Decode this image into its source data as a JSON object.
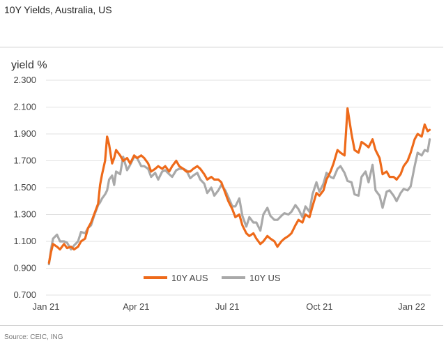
{
  "header": {
    "title": "10Y Yields, Australia, US"
  },
  "footer": {
    "source": "Source: CEIC, ING"
  },
  "colors": {
    "aus": "#ee6a1a",
    "us": "#a9a9a9",
    "grid": "#e1e1e1"
  },
  "chart_data": {
    "type": "line",
    "title": "10Y Yields, Australia, US",
    "ylabel": "yield %",
    "xlabel": "",
    "ylim": [
      0.7,
      2.3
    ],
    "yticks": [
      "2.300",
      "2.100",
      "1.900",
      "1.700",
      "1.500",
      "1.300",
      "1.100",
      "0.900",
      "0.700"
    ],
    "xlim": [
      "2021-01-01",
      "2022-01-20"
    ],
    "xticks": [
      {
        "date": "2021-01-01",
        "label": "Jan 21"
      },
      {
        "date": "2021-04-01",
        "label": "Apr 21"
      },
      {
        "date": "2021-07-01",
        "label": "Jul 21"
      },
      {
        "date": "2021-10-01",
        "label": "Oct 21"
      },
      {
        "date": "2022-01-01",
        "label": "Jan 22"
      }
    ],
    "grid": true,
    "legend": "bottom-center",
    "series": [
      {
        "name": "10Y AUS",
        "points": [
          [
            "2021-01-04",
            0.94
          ],
          [
            "2021-01-06",
            1.02
          ],
          [
            "2021-01-08",
            1.08
          ],
          [
            "2021-01-12",
            1.06
          ],
          [
            "2021-01-15",
            1.04
          ],
          [
            "2021-01-19",
            1.08
          ],
          [
            "2021-01-22",
            1.05
          ],
          [
            "2021-01-26",
            1.06
          ],
          [
            "2021-01-29",
            1.04
          ],
          [
            "2021-02-02",
            1.06
          ],
          [
            "2021-02-05",
            1.1
          ],
          [
            "2021-02-09",
            1.12
          ],
          [
            "2021-02-12",
            1.2
          ],
          [
            "2021-02-15",
            1.24
          ],
          [
            "2021-02-18",
            1.3
          ],
          [
            "2021-02-22",
            1.38
          ],
          [
            "2021-02-24",
            1.52
          ],
          [
            "2021-02-26",
            1.6
          ],
          [
            "2021-03-01",
            1.7
          ],
          [
            "2021-03-03",
            1.88
          ],
          [
            "2021-03-05",
            1.82
          ],
          [
            "2021-03-08",
            1.68
          ],
          [
            "2021-03-10",
            1.72
          ],
          [
            "2021-03-12",
            1.78
          ],
          [
            "2021-03-16",
            1.74
          ],
          [
            "2021-03-19",
            1.7
          ],
          [
            "2021-03-23",
            1.72
          ],
          [
            "2021-03-26",
            1.68
          ],
          [
            "2021-03-30",
            1.74
          ],
          [
            "2021-04-02",
            1.72
          ],
          [
            "2021-04-06",
            1.74
          ],
          [
            "2021-04-09",
            1.72
          ],
          [
            "2021-04-13",
            1.68
          ],
          [
            "2021-04-16",
            1.62
          ],
          [
            "2021-04-20",
            1.64
          ],
          [
            "2021-04-23",
            1.66
          ],
          [
            "2021-04-27",
            1.64
          ],
          [
            "2021-04-30",
            1.66
          ],
          [
            "2021-05-04",
            1.62
          ],
          [
            "2021-05-07",
            1.66
          ],
          [
            "2021-05-11",
            1.7
          ],
          [
            "2021-05-14",
            1.66
          ],
          [
            "2021-05-18",
            1.64
          ],
          [
            "2021-05-21",
            1.62
          ],
          [
            "2021-05-25",
            1.62
          ],
          [
            "2021-05-28",
            1.64
          ],
          [
            "2021-06-01",
            1.66
          ],
          [
            "2021-06-04",
            1.64
          ],
          [
            "2021-06-08",
            1.6
          ],
          [
            "2021-06-11",
            1.56
          ],
          [
            "2021-06-15",
            1.58
          ],
          [
            "2021-06-18",
            1.56
          ],
          [
            "2021-06-22",
            1.56
          ],
          [
            "2021-06-25",
            1.54
          ],
          [
            "2021-06-29",
            1.46
          ],
          [
            "2021-07-02",
            1.4
          ],
          [
            "2021-07-06",
            1.34
          ],
          [
            "2021-07-09",
            1.28
          ],
          [
            "2021-07-13",
            1.3
          ],
          [
            "2021-07-16",
            1.22
          ],
          [
            "2021-07-20",
            1.16
          ],
          [
            "2021-07-23",
            1.14
          ],
          [
            "2021-07-27",
            1.16
          ],
          [
            "2021-07-30",
            1.12
          ],
          [
            "2021-08-03",
            1.08
          ],
          [
            "2021-08-06",
            1.1
          ],
          [
            "2021-08-10",
            1.14
          ],
          [
            "2021-08-13",
            1.12
          ],
          [
            "2021-08-17",
            1.1
          ],
          [
            "2021-08-20",
            1.06
          ],
          [
            "2021-08-24",
            1.1
          ],
          [
            "2021-08-27",
            1.12
          ],
          [
            "2021-08-31",
            1.14
          ],
          [
            "2021-09-03",
            1.16
          ],
          [
            "2021-09-07",
            1.22
          ],
          [
            "2021-09-10",
            1.26
          ],
          [
            "2021-09-14",
            1.24
          ],
          [
            "2021-09-17",
            1.3
          ],
          [
            "2021-09-21",
            1.28
          ],
          [
            "2021-09-24",
            1.36
          ],
          [
            "2021-09-28",
            1.46
          ],
          [
            "2021-10-01",
            1.44
          ],
          [
            "2021-10-05",
            1.48
          ],
          [
            "2021-10-08",
            1.56
          ],
          [
            "2021-10-12",
            1.62
          ],
          [
            "2021-10-15",
            1.68
          ],
          [
            "2021-10-19",
            1.78
          ],
          [
            "2021-10-22",
            1.76
          ],
          [
            "2021-10-26",
            1.74
          ],
          [
            "2021-10-29",
            2.09
          ],
          [
            "2021-11-02",
            1.9
          ],
          [
            "2021-11-05",
            1.78
          ],
          [
            "2021-11-09",
            1.76
          ],
          [
            "2021-11-12",
            1.84
          ],
          [
            "2021-11-16",
            1.82
          ],
          [
            "2021-11-19",
            1.8
          ],
          [
            "2021-11-23",
            1.86
          ],
          [
            "2021-11-26",
            1.78
          ],
          [
            "2021-11-30",
            1.72
          ],
          [
            "2021-12-03",
            1.6
          ],
          [
            "2021-12-07",
            1.62
          ],
          [
            "2021-12-10",
            1.58
          ],
          [
            "2021-12-14",
            1.58
          ],
          [
            "2021-12-17",
            1.56
          ],
          [
            "2021-12-21",
            1.6
          ],
          [
            "2021-12-24",
            1.66
          ],
          [
            "2021-12-28",
            1.7
          ],
          [
            "2021-12-31",
            1.76
          ],
          [
            "2022-01-04",
            1.86
          ],
          [
            "2022-01-07",
            1.9
          ],
          [
            "2022-01-11",
            1.88
          ],
          [
            "2022-01-14",
            1.97
          ],
          [
            "2022-01-17",
            1.92
          ],
          [
            "2022-01-19",
            1.93
          ]
        ]
      },
      {
        "name": "10Y US",
        "points": [
          [
            "2021-01-04",
            0.93
          ],
          [
            "2021-01-06",
            1.04
          ],
          [
            "2021-01-08",
            1.12
          ],
          [
            "2021-01-12",
            1.15
          ],
          [
            "2021-01-15",
            1.1
          ],
          [
            "2021-01-19",
            1.1
          ],
          [
            "2021-01-22",
            1.09
          ],
          [
            "2021-01-26",
            1.04
          ],
          [
            "2021-01-29",
            1.07
          ],
          [
            "2021-02-02",
            1.1
          ],
          [
            "2021-02-05",
            1.17
          ],
          [
            "2021-02-09",
            1.16
          ],
          [
            "2021-02-12",
            1.2
          ],
          [
            "2021-02-15",
            1.22
          ],
          [
            "2021-02-18",
            1.29
          ],
          [
            "2021-02-22",
            1.37
          ],
          [
            "2021-02-24",
            1.39
          ],
          [
            "2021-02-26",
            1.42
          ],
          [
            "2021-03-01",
            1.45
          ],
          [
            "2021-03-03",
            1.48
          ],
          [
            "2021-03-05",
            1.56
          ],
          [
            "2021-03-08",
            1.59
          ],
          [
            "2021-03-10",
            1.52
          ],
          [
            "2021-03-12",
            1.62
          ],
          [
            "2021-03-16",
            1.6
          ],
          [
            "2021-03-19",
            1.73
          ],
          [
            "2021-03-23",
            1.63
          ],
          [
            "2021-03-26",
            1.67
          ],
          [
            "2021-03-30",
            1.73
          ],
          [
            "2021-04-02",
            1.72
          ],
          [
            "2021-04-06",
            1.66
          ],
          [
            "2021-04-09",
            1.66
          ],
          [
            "2021-04-13",
            1.64
          ],
          [
            "2021-04-16",
            1.58
          ],
          [
            "2021-04-20",
            1.61
          ],
          [
            "2021-04-23",
            1.56
          ],
          [
            "2021-04-27",
            1.62
          ],
          [
            "2021-04-30",
            1.63
          ],
          [
            "2021-05-04",
            1.6
          ],
          [
            "2021-05-07",
            1.58
          ],
          [
            "2021-05-11",
            1.63
          ],
          [
            "2021-05-14",
            1.64
          ],
          [
            "2021-05-18",
            1.64
          ],
          [
            "2021-05-21",
            1.63
          ],
          [
            "2021-05-25",
            1.57
          ],
          [
            "2021-05-28",
            1.59
          ],
          [
            "2021-06-01",
            1.61
          ],
          [
            "2021-06-04",
            1.56
          ],
          [
            "2021-06-08",
            1.53
          ],
          [
            "2021-06-11",
            1.46
          ],
          [
            "2021-06-15",
            1.5
          ],
          [
            "2021-06-18",
            1.44
          ],
          [
            "2021-06-22",
            1.48
          ],
          [
            "2021-06-25",
            1.52
          ],
          [
            "2021-06-29",
            1.48
          ],
          [
            "2021-07-02",
            1.43
          ],
          [
            "2021-07-06",
            1.36
          ],
          [
            "2021-07-09",
            1.36
          ],
          [
            "2021-07-13",
            1.42
          ],
          [
            "2021-07-16",
            1.29
          ],
          [
            "2021-07-20",
            1.21
          ],
          [
            "2021-07-23",
            1.28
          ],
          [
            "2021-07-27",
            1.24
          ],
          [
            "2021-07-30",
            1.24
          ],
          [
            "2021-08-03",
            1.18
          ],
          [
            "2021-08-06",
            1.3
          ],
          [
            "2021-08-10",
            1.35
          ],
          [
            "2021-08-13",
            1.29
          ],
          [
            "2021-08-17",
            1.26
          ],
          [
            "2021-08-20",
            1.26
          ],
          [
            "2021-08-24",
            1.29
          ],
          [
            "2021-08-27",
            1.31
          ],
          [
            "2021-08-31",
            1.3
          ],
          [
            "2021-09-03",
            1.32
          ],
          [
            "2021-09-07",
            1.37
          ],
          [
            "2021-09-10",
            1.34
          ],
          [
            "2021-09-14",
            1.28
          ],
          [
            "2021-09-17",
            1.36
          ],
          [
            "2021-09-21",
            1.32
          ],
          [
            "2021-09-24",
            1.45
          ],
          [
            "2021-09-28",
            1.54
          ],
          [
            "2021-10-01",
            1.47
          ],
          [
            "2021-10-05",
            1.53
          ],
          [
            "2021-10-08",
            1.61
          ],
          [
            "2021-10-12",
            1.58
          ],
          [
            "2021-10-15",
            1.57
          ],
          [
            "2021-10-19",
            1.64
          ],
          [
            "2021-10-22",
            1.66
          ],
          [
            "2021-10-26",
            1.61
          ],
          [
            "2021-10-29",
            1.55
          ],
          [
            "2021-11-02",
            1.54
          ],
          [
            "2021-11-05",
            1.45
          ],
          [
            "2021-11-09",
            1.44
          ],
          [
            "2021-11-12",
            1.58
          ],
          [
            "2021-11-16",
            1.62
          ],
          [
            "2021-11-19",
            1.54
          ],
          [
            "2021-11-23",
            1.67
          ],
          [
            "2021-11-26",
            1.48
          ],
          [
            "2021-11-30",
            1.44
          ],
          [
            "2021-12-03",
            1.35
          ],
          [
            "2021-12-07",
            1.47
          ],
          [
            "2021-12-10",
            1.48
          ],
          [
            "2021-12-14",
            1.44
          ],
          [
            "2021-12-17",
            1.4
          ],
          [
            "2021-12-21",
            1.46
          ],
          [
            "2021-12-24",
            1.49
          ],
          [
            "2021-12-28",
            1.48
          ],
          [
            "2021-12-31",
            1.51
          ],
          [
            "2022-01-04",
            1.66
          ],
          [
            "2022-01-07",
            1.76
          ],
          [
            "2022-01-11",
            1.74
          ],
          [
            "2022-01-14",
            1.78
          ],
          [
            "2022-01-17",
            1.77
          ],
          [
            "2022-01-19",
            1.86
          ]
        ]
      }
    ]
  }
}
